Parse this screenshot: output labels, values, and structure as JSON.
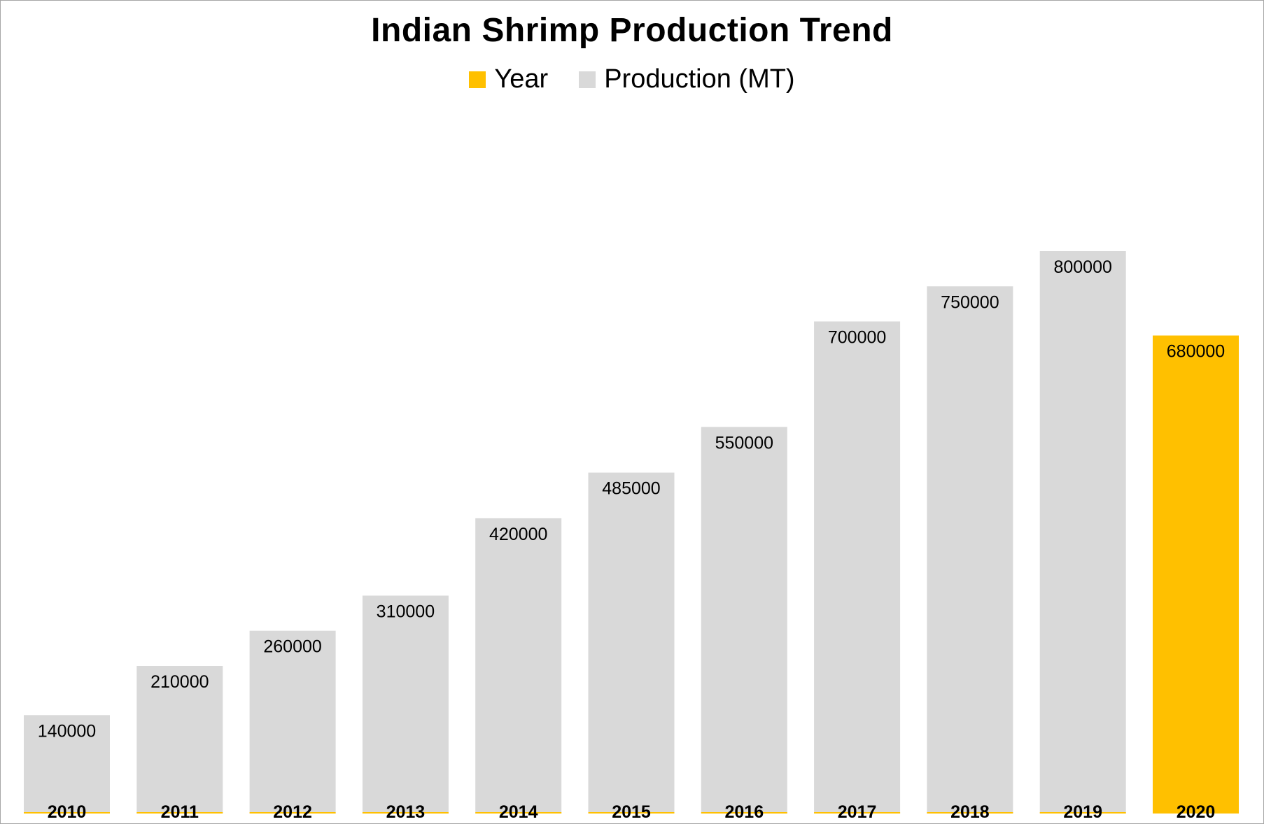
{
  "chart_data": {
    "type": "bar",
    "title": "Indian Shrimp Production Trend",
    "xlabel": "",
    "ylabel": "",
    "categories": [
      "2010",
      "2011",
      "2012",
      "2013",
      "2014",
      "2015",
      "2016",
      "2017",
      "2018",
      "2019",
      "2020"
    ],
    "series": [
      {
        "name": "Year",
        "values": [
          2010,
          2011,
          2012,
          2013,
          2014,
          2015,
          2016,
          2017,
          2018,
          2019,
          2020
        ],
        "color": "#ffc000"
      },
      {
        "name": "Production (MT)",
        "values": [
          140000,
          210000,
          260000,
          310000,
          420000,
          485000,
          550000,
          700000,
          750000,
          800000,
          680000
        ],
        "color": "#d9d9d9"
      }
    ],
    "highlight": {
      "category": "2020",
      "color": "#ffc000"
    },
    "legend_position": "top",
    "grid": false,
    "y_axis_visible": false,
    "ylim": [
      0,
      1000000
    ]
  }
}
